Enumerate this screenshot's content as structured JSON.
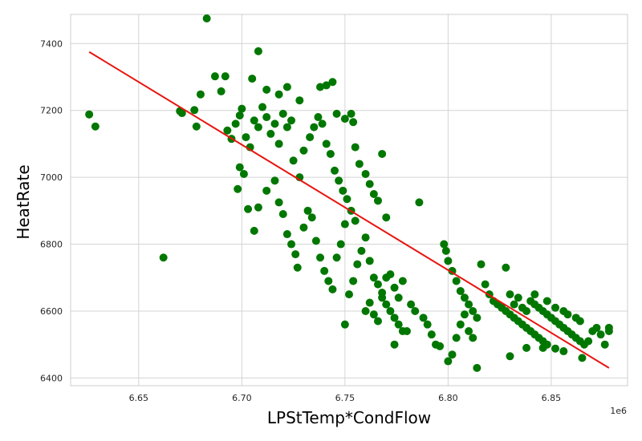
{
  "chart_data": {
    "type": "scatter",
    "xlabel": "LPStTemp*CondFlow",
    "ylabel": "HeatRate",
    "x_offset_label": "1e6",
    "x_scale": 1000000,
    "xlim": [
      6.617,
      6.887
    ],
    "ylim": [
      6377,
      7487
    ],
    "xticks": [
      6.65,
      6.7,
      6.75,
      6.8,
      6.85
    ],
    "xtick_labels": [
      "6.65",
      "6.70",
      "6.75",
      "6.80",
      "6.85"
    ],
    "yticks": [
      6400,
      6600,
      6800,
      7000,
      7200,
      7400
    ],
    "ytick_labels": [
      "6400",
      "6600",
      "6800",
      "7000",
      "7200",
      "7400"
    ],
    "grid": true,
    "colors": {
      "points": "#007700",
      "line": "#e8140f",
      "grid": "#d4d4d4",
      "frame": "#cccccc"
    },
    "series": [
      {
        "kind": "scatter",
        "note_points": "x in units of 1e6",
        "points": [
          [
            6.683,
            7475
          ],
          [
            6.708,
            7377
          ],
          [
            6.626,
            7188
          ],
          [
            6.629,
            7152
          ],
          [
            6.662,
            6760
          ],
          [
            6.67,
            7198
          ],
          [
            6.671,
            7192
          ],
          [
            6.677,
            7201
          ],
          [
            6.678,
            7152
          ],
          [
            6.68,
            7248
          ],
          [
            6.687,
            7302
          ],
          [
            6.69,
            7257
          ],
          [
            6.692,
            7302
          ],
          [
            6.693,
            7140
          ],
          [
            6.695,
            7115
          ],
          [
            6.697,
            7160
          ],
          [
            6.699,
            7185
          ],
          [
            6.7,
            7205
          ],
          [
            6.702,
            7120
          ],
          [
            6.704,
            7090
          ],
          [
            6.706,
            7170
          ],
          [
            6.708,
            7150
          ],
          [
            6.71,
            7210
          ],
          [
            6.712,
            7180
          ],
          [
            6.714,
            7130
          ],
          [
            6.716,
            7160
          ],
          [
            6.718,
            7100
          ],
          [
            6.72,
            7190
          ],
          [
            6.722,
            7150
          ],
          [
            6.724,
            7170
          ],
          [
            6.705,
            7295
          ],
          [
            6.712,
            7262
          ],
          [
            6.718,
            7248
          ],
          [
            6.722,
            7270
          ],
          [
            6.728,
            7230
          ],
          [
            6.699,
            7030
          ],
          [
            6.701,
            7010
          ],
          [
            6.703,
            6905
          ],
          [
            6.698,
            6965
          ],
          [
            6.706,
            6840
          ],
          [
            6.708,
            6910
          ],
          [
            6.712,
            6960
          ],
          [
            6.716,
            6990
          ],
          [
            6.718,
            6925
          ],
          [
            6.72,
            6890
          ],
          [
            6.722,
            6830
          ],
          [
            6.724,
            6800
          ],
          [
            6.726,
            6770
          ],
          [
            6.727,
            6730
          ],
          [
            6.73,
            6850
          ],
          [
            6.732,
            6900
          ],
          [
            6.734,
            6880
          ],
          [
            6.736,
            6810
          ],
          [
            6.738,
            6760
          ],
          [
            6.74,
            6720
          ],
          [
            6.742,
            6690
          ],
          [
            6.744,
            6665
          ],
          [
            6.746,
            6760
          ],
          [
            6.748,
            6800
          ],
          [
            6.75,
            6860
          ],
          [
            6.725,
            7050
          ],
          [
            6.728,
            7000
          ],
          [
            6.73,
            7080
          ],
          [
            6.733,
            7120
          ],
          [
            6.735,
            7150
          ],
          [
            6.737,
            7180
          ],
          [
            6.739,
            7160
          ],
          [
            6.741,
            7100
          ],
          [
            6.743,
            7070
          ],
          [
            6.745,
            7020
          ],
          [
            6.747,
            6990
          ],
          [
            6.749,
            6960
          ],
          [
            6.751,
            6935
          ],
          [
            6.753,
            6900
          ],
          [
            6.755,
            6870
          ],
          [
            6.738,
            7270
          ],
          [
            6.741,
            7275
          ],
          [
            6.744,
            7285
          ],
          [
            6.746,
            7190
          ],
          [
            6.75,
            7175
          ],
          [
            6.753,
            7190
          ],
          [
            6.754,
            7165
          ],
          [
            6.755,
            7090
          ],
          [
            6.757,
            7040
          ],
          [
            6.76,
            7010
          ],
          [
            6.762,
            6980
          ],
          [
            6.764,
            6950
          ],
          [
            6.766,
            6930
          ],
          [
            6.768,
            7070
          ],
          [
            6.77,
            6880
          ],
          [
            6.75,
            6560
          ],
          [
            6.752,
            6650
          ],
          [
            6.754,
            6690
          ],
          [
            6.756,
            6740
          ],
          [
            6.758,
            6780
          ],
          [
            6.76,
            6820
          ],
          [
            6.762,
            6750
          ],
          [
            6.764,
            6700
          ],
          [
            6.766,
            6680
          ],
          [
            6.768,
            6640
          ],
          [
            6.77,
            6620
          ],
          [
            6.772,
            6600
          ],
          [
            6.774,
            6580
          ],
          [
            6.776,
            6560
          ],
          [
            6.778,
            6540
          ],
          [
            6.76,
            6600
          ],
          [
            6.762,
            6625
          ],
          [
            6.764,
            6590
          ],
          [
            6.766,
            6570
          ],
          [
            6.768,
            6655
          ],
          [
            6.77,
            6700
          ],
          [
            6.772,
            6710
          ],
          [
            6.774,
            6670
          ],
          [
            6.776,
            6640
          ],
          [
            6.778,
            6690
          ],
          [
            6.774,
            6500
          ],
          [
            6.78,
            6540
          ],
          [
            6.782,
            6620
          ],
          [
            6.784,
            6600
          ],
          [
            6.786,
            6925
          ],
          [
            6.788,
            6580
          ],
          [
            6.79,
            6560
          ],
          [
            6.792,
            6530
          ],
          [
            6.794,
            6500
          ],
          [
            6.796,
            6495
          ],
          [
            6.798,
            6800
          ],
          [
            6.799,
            6780
          ],
          [
            6.8,
            6750
          ],
          [
            6.802,
            6720
          ],
          [
            6.804,
            6690
          ],
          [
            6.806,
            6660
          ],
          [
            6.808,
            6640
          ],
          [
            6.81,
            6620
          ],
          [
            6.812,
            6600
          ],
          [
            6.814,
            6580
          ],
          [
            6.8,
            6450
          ],
          [
            6.802,
            6470
          ],
          [
            6.804,
            6520
          ],
          [
            6.806,
            6560
          ],
          [
            6.808,
            6590
          ],
          [
            6.81,
            6540
          ],
          [
            6.812,
            6520
          ],
          [
            6.814,
            6430
          ],
          [
            6.816,
            6740
          ],
          [
            6.818,
            6680
          ],
          [
            6.82,
            6650
          ],
          [
            6.822,
            6630
          ],
          [
            6.824,
            6620
          ],
          [
            6.826,
            6610
          ],
          [
            6.828,
            6600
          ],
          [
            6.83,
            6590
          ],
          [
            6.832,
            6580
          ],
          [
            6.834,
            6570
          ],
          [
            6.836,
            6560
          ],
          [
            6.838,
            6550
          ],
          [
            6.84,
            6540
          ],
          [
            6.842,
            6530
          ],
          [
            6.844,
            6520
          ],
          [
            6.846,
            6510
          ],
          [
            6.848,
            6500
          ],
          [
            6.828,
            6730
          ],
          [
            6.83,
            6650
          ],
          [
            6.832,
            6620
          ],
          [
            6.834,
            6640
          ],
          [
            6.836,
            6610
          ],
          [
            6.838,
            6600
          ],
          [
            6.84,
            6630
          ],
          [
            6.842,
            6620
          ],
          [
            6.844,
            6610
          ],
          [
            6.846,
            6600
          ],
          [
            6.848,
            6590
          ],
          [
            6.85,
            6580
          ],
          [
            6.852,
            6570
          ],
          [
            6.854,
            6560
          ],
          [
            6.856,
            6550
          ],
          [
            6.858,
            6540
          ],
          [
            6.86,
            6530
          ],
          [
            6.862,
            6520
          ],
          [
            6.864,
            6510
          ],
          [
            6.866,
            6500
          ],
          [
            6.83,
            6465
          ],
          [
            6.838,
            6490
          ],
          [
            6.846,
            6490
          ],
          [
            6.852,
            6488
          ],
          [
            6.856,
            6480
          ],
          [
            6.865,
            6460
          ],
          [
            6.868,
            6510
          ],
          [
            6.87,
            6540
          ],
          [
            6.872,
            6550
          ],
          [
            6.874,
            6530
          ],
          [
            6.876,
            6500
          ],
          [
            6.878,
            6540
          ],
          [
            6.878,
            6550
          ],
          [
            6.842,
            6650
          ],
          [
            6.848,
            6630
          ],
          [
            6.852,
            6610
          ],
          [
            6.856,
            6600
          ],
          [
            6.858,
            6590
          ],
          [
            6.862,
            6580
          ],
          [
            6.864,
            6570
          ]
        ]
      },
      {
        "kind": "line",
        "x": [
          6.626,
          6.878
        ],
        "y": [
          7375,
          6430
        ]
      }
    ]
  }
}
